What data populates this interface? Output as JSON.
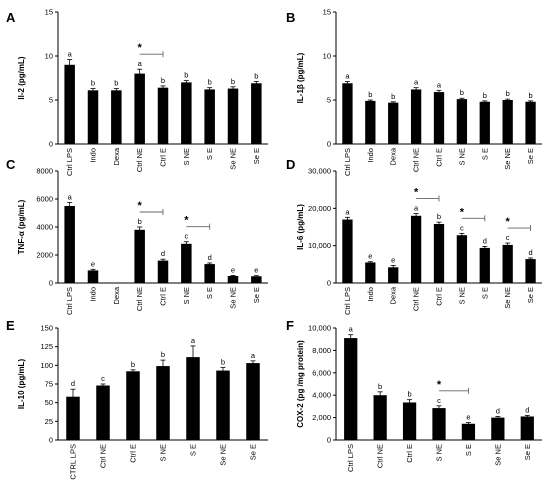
{
  "chart_data": [
    {
      "type": "bar",
      "panel": "A",
      "ylabel": "Il-2 (pg/mL)",
      "ylim": [
        0,
        15
      ],
      "yticks": [
        "0",
        "5",
        "10",
        "15"
      ],
      "categories": [
        "Ctrl LPS",
        "Indo",
        "Dexa",
        "Ctrl NE",
        "Ctrl E",
        "S NE",
        "S E",
        "Se NE",
        "Se E"
      ],
      "values": [
        9.0,
        6.1,
        6.1,
        8.0,
        6.4,
        7.0,
        6.2,
        6.3,
        6.9
      ],
      "errors": [
        0.6,
        0.2,
        0.2,
        0.5,
        0.2,
        0.2,
        0.2,
        0.2,
        0.2
      ],
      "letters": [
        "a",
        "b",
        "b",
        "a",
        "b",
        "b",
        "b",
        "b",
        "b"
      ],
      "comparisons": [
        {
          "from": 3,
          "to": 4,
          "label": "*"
        }
      ]
    },
    {
      "type": "bar",
      "panel": "B",
      "ylabel": "IL-1β (pg/mL)",
      "ylim": [
        0,
        15
      ],
      "yticks": [
        "0",
        "5",
        "10",
        "15"
      ],
      "categories": [
        "Ctrl LPS",
        "Indo",
        "Dexa",
        "Ctrl NE",
        "Ctrl E",
        "S NE",
        "S E",
        "Se NE",
        "Se E"
      ],
      "values": [
        6.9,
        4.9,
        4.7,
        6.2,
        5.9,
        5.1,
        4.8,
        5.0,
        4.8
      ],
      "errors": [
        0.2,
        0.1,
        0.1,
        0.2,
        0.2,
        0.1,
        0.1,
        0.1,
        0.1
      ],
      "letters": [
        "a",
        "b",
        "b",
        "a",
        "a",
        "b",
        "b",
        "b",
        "b"
      ],
      "comparisons": []
    },
    {
      "type": "bar",
      "panel": "C",
      "ylabel": "TNF-α (pg/mL)",
      "ylim": [
        0,
        8000
      ],
      "yticks": [
        "0",
        "2000",
        "4000",
        "6000",
        "8000"
      ],
      "categories": [
        "Ctrl LPS",
        "Indo",
        "Dexa",
        "Ctrl NE",
        "Ctrl E",
        "S NE",
        "S E",
        "Se NE",
        "Se E"
      ],
      "values": [
        5500,
        900,
        0,
        3800,
        1600,
        2800,
        1350,
        500,
        480
      ],
      "errors": [
        250,
        80,
        0,
        200,
        100,
        150,
        80,
        40,
        40
      ],
      "letters": [
        "a",
        "e",
        "",
        "b",
        "d",
        "c",
        "d",
        "e",
        "e"
      ],
      "comparisons": [
        {
          "from": 3,
          "to": 4,
          "label": "*"
        },
        {
          "from": 5,
          "to": 6,
          "label": "*"
        }
      ]
    },
    {
      "type": "bar",
      "panel": "D",
      "ylabel": "IL-6 (pg/mL)",
      "ylim": [
        0,
        30000
      ],
      "yticks": [
        "0",
        "10,000",
        "20,000",
        "30,000"
      ],
      "categories": [
        "Ctrl LPS",
        "Indo",
        "Dexa",
        "Ctrl NE",
        "Ctrl E",
        "S NE",
        "S E",
        "Se NE",
        "Se E"
      ],
      "values": [
        17000,
        5500,
        4200,
        18000,
        15800,
        12800,
        9400,
        10200,
        6400
      ],
      "errors": [
        600,
        200,
        500,
        600,
        500,
        500,
        400,
        500,
        300
      ],
      "letters": [
        "a",
        "e",
        "e",
        "a",
        "b",
        "c",
        "d",
        "c",
        "d"
      ],
      "comparisons": [
        {
          "from": 3,
          "to": 4,
          "label": "*"
        },
        {
          "from": 5,
          "to": 6,
          "label": "*"
        },
        {
          "from": 7,
          "to": 8,
          "label": "*"
        }
      ]
    },
    {
      "type": "bar",
      "panel": "E",
      "ylabel": "IL-10 (pg/mL)",
      "ylim": [
        0,
        150
      ],
      "yticks": [
        "0",
        "25",
        "50",
        "75",
        "100",
        "125",
        "150"
      ],
      "categories": [
        "CTRL LPS",
        "Ctrl NE",
        "Ctrl E",
        "S NE",
        "S E",
        "Se NE",
        "Se E"
      ],
      "values": [
        58,
        73,
        92,
        99,
        111,
        93,
        103
      ],
      "errors": [
        10,
        2,
        2,
        8,
        15,
        4,
        3
      ],
      "letters": [
        "d",
        "c",
        "b",
        "b",
        "a",
        "b",
        "a"
      ],
      "comparisons": []
    },
    {
      "type": "bar",
      "panel": "F",
      "ylabel": "COX-2 (pg /mg protein)",
      "ylim": [
        0,
        10000
      ],
      "yticks": [
        "0",
        "2,000",
        "4,000",
        "6,000",
        "8,000",
        "10,000"
      ],
      "categories": [
        "Ctrl LPS",
        "Ctrl NE",
        "Ctrl E",
        "S NE",
        "S E",
        "Se NE",
        "Se E"
      ],
      "values": [
        9100,
        4000,
        3350,
        2850,
        1450,
        2000,
        2100
      ],
      "errors": [
        300,
        300,
        250,
        200,
        100,
        100,
        100
      ],
      "letters": [
        "a",
        "b",
        "b",
        "c",
        "e",
        "d",
        "d"
      ],
      "comparisons": [
        {
          "from": 3,
          "to": 4,
          "label": "*"
        }
      ]
    }
  ]
}
